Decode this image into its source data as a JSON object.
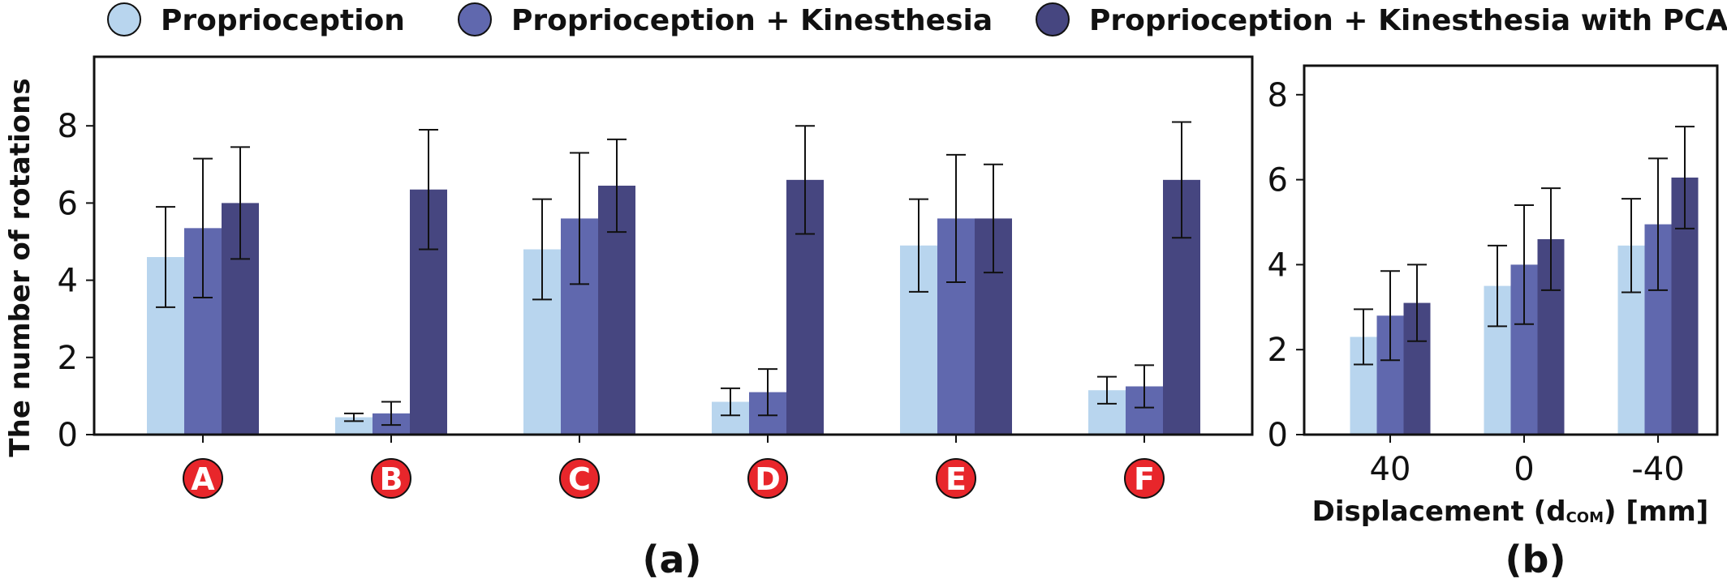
{
  "legend": [
    {
      "label": "Proprioception",
      "color": "#b8d5ee"
    },
    {
      "label": "Proprioception + Kinesthesia",
      "color": "#6068ae"
    },
    {
      "label": "Proprioception + Kinesthesia with PCA",
      "color": "#464680"
    }
  ],
  "chart_data": [
    {
      "type": "bar",
      "panel": "(a)",
      "ylabel": "The number of rotations",
      "xlabel": "",
      "ylim": [
        0,
        8
      ],
      "yticks": [
        0,
        2,
        4,
        6,
        8
      ],
      "categories": [
        "A",
        "B",
        "C",
        "D",
        "E",
        "F"
      ],
      "category_badge_color": "#e8262b",
      "series": [
        {
          "name": "Proprioception",
          "values": [
            4.6,
            0.45,
            4.8,
            0.85,
            4.9,
            1.15
          ],
          "errors": [
            1.3,
            0.1,
            1.3,
            0.35,
            1.2,
            0.35
          ]
        },
        {
          "name": "Proprioception + Kinesthesia",
          "values": [
            5.35,
            0.55,
            5.6,
            1.1,
            5.6,
            1.25
          ],
          "errors": [
            1.8,
            0.3,
            1.7,
            0.6,
            1.65,
            0.55
          ]
        },
        {
          "name": "Proprioception + Kinesthesia with PCA",
          "values": [
            6.0,
            6.35,
            6.45,
            6.6,
            5.6,
            6.6
          ],
          "errors": [
            1.45,
            1.55,
            1.2,
            1.4,
            1.4,
            1.5
          ]
        }
      ],
      "grid": false
    },
    {
      "type": "bar",
      "panel": "(b)",
      "ylabel": "",
      "xlabel_prefix": "Displacement (d",
      "xlabel_sub": "COM",
      "xlabel_suffix": ") [mm]",
      "ylim": [
        0,
        8
      ],
      "yticks": [
        0,
        2,
        4,
        6,
        8
      ],
      "categories": [
        "40",
        "0",
        "-40"
      ],
      "series": [
        {
          "name": "Proprioception",
          "values": [
            2.3,
            3.5,
            4.45
          ],
          "errors": [
            0.65,
            0.95,
            1.1
          ]
        },
        {
          "name": "Proprioception + Kinesthesia",
          "values": [
            2.8,
            4.0,
            4.95
          ],
          "errors": [
            1.05,
            1.4,
            1.55
          ]
        },
        {
          "name": "Proprioception + Kinesthesia with PCA",
          "values": [
            3.1,
            4.6,
            6.05
          ],
          "errors": [
            0.9,
            1.2,
            1.2
          ]
        }
      ],
      "grid": false
    }
  ]
}
